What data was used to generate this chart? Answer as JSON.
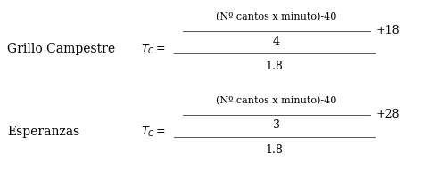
{
  "background_color": "#ffffff",
  "label1": "Grillo Campestre",
  "label2": "Esperanzas",
  "formula1_num_top": "(Nº cantos x minuto)-40",
  "formula1_num_bottom": "4",
  "formula1_denom": "1.8",
  "formula1_addend": "+18",
  "formula2_num_top": "(Nº cantos x minuto)-40",
  "formula2_num_bottom": "3",
  "formula2_denom": "1.8",
  "formula2_addend": "+28",
  "label_fontsize": 10,
  "formula_fontsize": 9,
  "small_fontsize": 8
}
